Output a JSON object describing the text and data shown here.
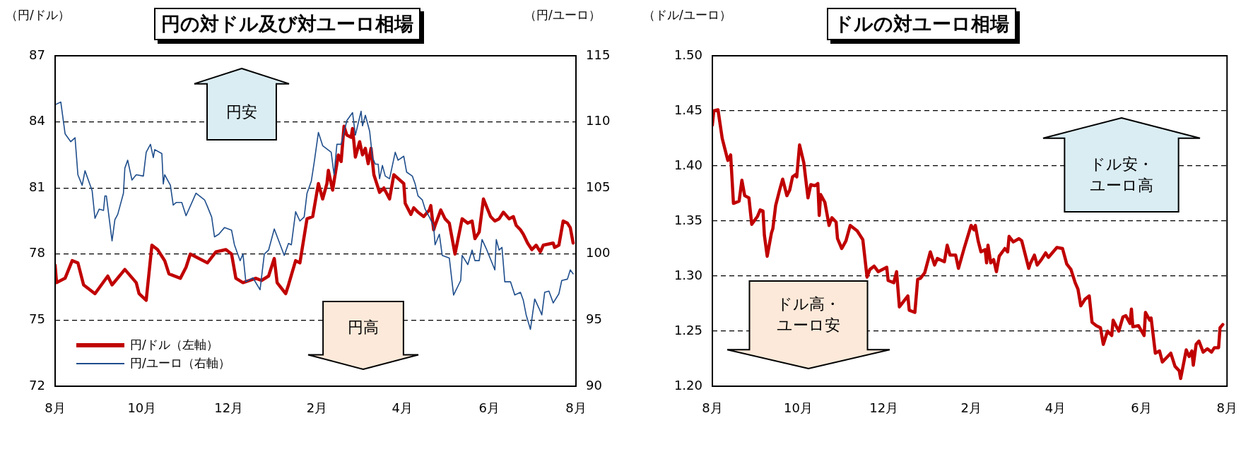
{
  "chart_data": [
    {
      "type": "line",
      "title": "円の対ドル及び対ユーロ相場",
      "ylabel": "（円/ドル）",
      "y2label": "（円/ユーロ）",
      "xlim": [
        "2011-08-01",
        "2012-08-01"
      ],
      "xticks": [
        {
          "value": "2011-08-01",
          "label": "8月"
        },
        {
          "value": "2011-10-01",
          "label": "10月"
        },
        {
          "value": "2011-12-01",
          "label": "12月"
        },
        {
          "value": "2012-02-01",
          "label": "2月"
        },
        {
          "value": "2012-04-01",
          "label": "4月"
        },
        {
          "value": "2012-06-01",
          "label": "6月"
        },
        {
          "value": "2012-08-01",
          "label": "8月"
        }
      ],
      "ylim": [
        72,
        87
      ],
      "yticks": [
        72,
        75,
        78,
        81,
        84,
        87
      ],
      "y2lim": [
        90,
        115
      ],
      "y2ticks": [
        90,
        95,
        100,
        105,
        110,
        115
      ],
      "grid": "y",
      "legend": "bottom left",
      "annotations": [
        "円安",
        "円高"
      ],
      "series": [
        {
          "name": "円/ドル（左軸）",
          "color": "#c00000",
          "x": [
            "2011-08-01",
            "2011-08-02",
            "2011-08-08",
            "2011-08-13",
            "2011-08-17",
            "2011-08-21",
            "2011-08-29",
            "2011-09-07",
            "2011-09-10",
            "2011-09-19",
            "2011-09-27",
            "2011-09-29",
            "2011-10-04",
            "2011-10-08",
            "2011-10-12",
            "2011-10-17",
            "2011-10-20",
            "2011-10-28",
            "2011-11-01",
            "2011-11-04",
            "2011-11-16",
            "2011-11-22",
            "2011-11-29",
            "2011-12-03",
            "2011-12-06",
            "2011-12-11",
            "2011-12-20",
            "2011-12-24",
            "2011-12-29",
            "2012-01-02",
            "2012-01-04",
            "2012-01-10",
            "2012-01-12",
            "2012-01-17",
            "2012-01-20",
            "2012-01-22",
            "2012-01-25",
            "2012-01-29",
            "2012-02-02",
            "2012-02-05",
            "2012-02-08",
            "2012-02-09",
            "2012-02-12",
            "2012-02-16",
            "2012-02-18",
            "2012-02-20",
            "2012-02-22",
            "2012-02-25",
            "2012-02-26",
            "2012-02-28",
            "2012-03-02",
            "2012-03-04",
            "2012-03-06",
            "2012-03-08",
            "2012-03-10",
            "2012-03-12",
            "2012-03-16",
            "2012-03-19",
            "2012-03-23",
            "2012-03-26",
            "2012-04-02",
            "2012-04-03",
            "2012-04-07",
            "2012-04-09",
            "2012-04-12",
            "2012-04-16",
            "2012-04-20",
            "2012-04-21",
            "2012-04-23",
            "2012-04-24",
            "2012-04-28",
            "2012-05-01",
            "2012-05-04",
            "2012-05-08",
            "2012-05-13",
            "2012-05-17",
            "2012-05-20",
            "2012-05-22",
            "2012-05-25",
            "2012-05-28",
            "2012-06-02",
            "2012-06-05",
            "2012-06-08",
            "2012-06-11",
            "2012-06-15",
            "2012-06-18",
            "2012-06-20",
            "2012-06-23",
            "2012-06-25",
            "2012-06-28",
            "2012-07-01",
            "2012-07-04",
            "2012-07-07",
            "2012-07-09",
            "2012-07-16",
            "2012-07-17",
            "2012-07-20",
            "2012-07-23",
            "2012-07-26",
            "2012-07-28",
            "2012-07-30"
          ],
          "values": [
            77.5,
            76.7,
            76.9,
            77.7,
            77.6,
            76.6,
            76.2,
            77.0,
            76.6,
            77.3,
            76.7,
            76.2,
            75.9,
            78.4,
            78.2,
            77.7,
            77.1,
            76.9,
            77.4,
            78.0,
            77.6,
            78.1,
            78.2,
            78.0,
            76.9,
            76.7,
            76.9,
            76.8,
            77.0,
            77.8,
            76.7,
            76.2,
            76.6,
            77.7,
            77.6,
            78.4,
            79.6,
            79.7,
            81.2,
            80.5,
            81.2,
            81.8,
            80.9,
            82.5,
            82.2,
            83.8,
            83.4,
            83.3,
            83.7,
            82.4,
            83.1,
            82.5,
            82.8,
            82.1,
            82.8,
            81.6,
            80.8,
            81.0,
            80.5,
            81.6,
            81.2,
            80.3,
            79.8,
            80.1,
            79.9,
            79.7,
            80.0,
            80.2,
            79.1,
            79.3,
            80.0,
            79.6,
            79.4,
            78.0,
            79.6,
            79.4,
            79.5,
            78.7,
            79.0,
            80.5,
            79.7,
            79.5,
            79.6,
            79.9,
            79.6,
            79.7,
            79.3,
            79.1,
            78.9,
            78.5,
            78.2,
            78.4,
            78.1,
            78.4,
            78.5,
            78.3,
            78.4,
            79.5,
            79.4,
            79.2,
            78.5
          ]
        },
        {
          "name": "円/ユーロ（右軸）",
          "color": "#1f4e8c",
          "axis": "y2",
          "x": [
            "2011-08-01",
            "2011-08-05",
            "2011-08-08",
            "2011-08-12",
            "2011-08-15",
            "2011-08-17",
            "2011-08-20",
            "2011-08-22",
            "2011-08-27",
            "2011-08-29",
            "2011-09-01",
            "2011-09-04",
            "2011-09-05",
            "2011-09-06",
            "2011-09-10",
            "2011-09-12",
            "2011-09-14",
            "2011-09-18",
            "2011-09-19",
            "2011-09-21",
            "2011-09-24",
            "2011-09-27",
            "2011-10-02",
            "2011-10-04",
            "2011-10-07",
            "2011-10-09",
            "2011-10-10",
            "2011-10-15",
            "2011-10-16",
            "2011-10-17",
            "2011-10-21",
            "2011-10-23",
            "2011-10-25",
            "2011-10-29",
            "2011-11-01",
            "2011-11-08",
            "2011-11-14",
            "2011-11-16",
            "2011-11-19",
            "2011-11-21",
            "2011-11-24",
            "2011-11-28",
            "2011-12-03",
            "2011-12-05",
            "2011-12-09",
            "2011-12-11",
            "2011-12-13",
            "2011-12-18",
            "2011-12-23",
            "2011-12-26",
            "2011-12-29",
            "2012-01-02",
            "2012-01-09",
            "2012-01-12",
            "2012-01-14",
            "2012-01-17",
            "2012-01-20",
            "2012-01-23",
            "2012-01-25",
            "2012-01-28",
            "2012-01-30",
            "2012-02-02",
            "2012-02-05",
            "2012-02-11",
            "2012-02-13",
            "2012-02-15",
            "2012-02-18",
            "2012-02-22",
            "2012-02-26",
            "2012-02-28",
            "2012-03-03",
            "2012-03-04",
            "2012-03-06",
            "2012-03-09",
            "2012-03-11",
            "2012-03-13",
            "2012-03-15",
            "2012-03-16",
            "2012-03-18",
            "2012-03-20",
            "2012-03-23",
            "2012-03-27",
            "2012-03-29",
            "2012-04-02",
            "2012-04-04",
            "2012-04-08",
            "2012-04-10",
            "2012-04-12",
            "2012-04-15",
            "2012-04-17",
            "2012-04-20",
            "2012-04-23",
            "2012-04-24",
            "2012-04-27",
            "2012-04-29",
            "2012-05-04",
            "2012-05-07",
            "2012-05-12",
            "2012-05-13",
            "2012-05-17",
            "2012-05-20",
            "2012-05-22",
            "2012-05-25",
            "2012-05-27",
            "2012-05-30",
            "2012-06-05",
            "2012-06-06",
            "2012-06-08",
            "2012-06-10",
            "2012-06-12",
            "2012-06-16",
            "2012-06-19",
            "2012-06-23",
            "2012-06-25",
            "2012-06-27",
            "2012-06-30",
            "2012-07-03",
            "2012-07-06",
            "2012-07-08",
            "2012-07-10",
            "2012-07-13",
            "2012-07-16",
            "2012-07-20",
            "2012-07-22",
            "2012-07-26",
            "2012-07-28",
            "2012-07-30"
          ],
          "values": [
            111.3,
            111.5,
            109.1,
            108.5,
            108.8,
            106.0,
            105.2,
            106.3,
            104.8,
            102.7,
            103.4,
            103.3,
            104.4,
            104.4,
            101.0,
            102.6,
            103.0,
            104.6,
            106.5,
            107.1,
            105.6,
            106.0,
            105.9,
            107.7,
            108.3,
            107.3,
            107.9,
            107.6,
            105.3,
            106.0,
            105.2,
            103.7,
            103.9,
            103.9,
            102.9,
            104.6,
            104.1,
            103.6,
            102.8,
            101.3,
            101.5,
            102.0,
            101.8,
            100.7,
            99.5,
            100.0,
            97.9,
            98.2,
            97.3,
            100.0,
            100.3,
            101.9,
            99.9,
            100.8,
            100.7,
            103.2,
            102.5,
            102.8,
            104.6,
            105.5,
            106.9,
            109.2,
            108.2,
            107.7,
            106.0,
            108.3,
            108.3,
            110.1,
            110.7,
            109.0,
            110.8,
            109.7,
            110.5,
            109.3,
            107.3,
            106.8,
            106.8,
            105.7,
            106.7,
            105.9,
            105.7,
            107.7,
            107.1,
            107.4,
            106.2,
            105.9,
            105.3,
            104.4,
            104.1,
            103.4,
            102.8,
            102.1,
            100.7,
            101.5,
            99.9,
            99.7,
            96.9,
            98.0,
            99.9,
            99.2,
            100.3,
            99.5,
            99.5,
            101.1,
            100.4,
            98.8,
            101.1,
            100.3,
            100.5,
            97.9,
            97.9,
            96.9,
            97.1,
            96.5,
            95.4,
            94.3,
            96.6,
            95.9,
            95.4,
            97.1,
            97.2,
            96.3,
            97.0,
            98.0,
            98.1,
            98.8,
            98.5
          ]
        }
      ]
    },
    {
      "type": "line",
      "title": "ドルの対ユーロ相場",
      "ylabel": "（ドル/ユーロ）",
      "xlim": [
        "2011-08-01",
        "2012-08-01"
      ],
      "xticks": [
        {
          "value": "2011-08-01",
          "label": "8月"
        },
        {
          "value": "2011-10-01",
          "label": "10月"
        },
        {
          "value": "2011-12-01",
          "label": "12月"
        },
        {
          "value": "2012-02-01",
          "label": "2月"
        },
        {
          "value": "2012-04-01",
          "label": "4月"
        },
        {
          "value": "2012-06-01",
          "label": "6月"
        },
        {
          "value": "2012-08-01",
          "label": "8月"
        }
      ],
      "ylim": [
        1.2,
        1.5
      ],
      "yticks": [
        {
          "value": 1.2,
          "label": "1.20"
        },
        1.25,
        {
          "value": 1.3,
          "label": "1.30"
        },
        1.35,
        {
          "value": 1.4,
          "label": "1.40"
        },
        1.45,
        {
          "value": 1.5,
          "label": "1.50"
        }
      ],
      "grid": "y",
      "annotations": [
        "ドル安・ユーロ高",
        "ドル高・ユーロ安"
      ],
      "series": [
        {
          "color": "#c00000",
          "x": [
            "2011-08-01",
            "2011-08-02",
            "2011-08-05",
            "2011-08-08",
            "2011-08-10",
            "2011-08-12",
            "2011-08-14",
            "2011-08-16",
            "2011-08-20",
            "2011-08-22",
            "2011-08-24",
            "2011-08-27",
            "2011-08-29",
            "2011-09-02",
            "2011-09-04",
            "2011-09-06",
            "2011-09-07",
            "2011-09-09",
            "2011-09-12",
            "2011-09-13",
            "2011-09-15",
            "2011-09-18",
            "2011-09-20",
            "2011-09-23",
            "2011-09-25",
            "2011-09-27",
            "2011-09-29",
            "2011-09-30",
            "2011-10-02",
            "2011-10-05",
            "2011-10-08",
            "2011-10-10",
            "2011-10-13",
            "2011-10-15",
            "2011-10-16",
            "2011-10-17",
            "2011-10-20",
            "2011-10-23",
            "2011-10-25",
            "2011-10-28",
            "2011-10-29",
            "2011-11-01",
            "2011-11-04",
            "2011-11-07",
            "2011-11-12",
            "2011-11-16",
            "2011-11-19",
            "2011-11-21",
            "2011-11-24",
            "2011-11-27",
            "2011-12-03",
            "2011-12-04",
            "2011-12-08",
            "2011-12-10",
            "2011-12-12",
            "2011-12-15",
            "2011-12-18",
            "2011-12-19",
            "2011-12-23",
            "2011-12-25",
            "2011-12-27",
            "2011-12-30",
            "2012-01-03",
            "2012-01-06",
            "2012-01-08",
            "2012-01-13",
            "2012-01-15",
            "2012-01-17",
            "2012-01-21",
            "2012-01-23",
            "2012-01-27",
            "2012-02-01",
            "2012-02-03",
            "2012-02-04",
            "2012-02-06",
            "2012-02-08",
            "2012-02-11",
            "2012-02-12",
            "2012-02-13",
            "2012-02-15",
            "2012-02-17",
            "2012-02-19",
            "2012-02-21",
            "2012-02-25",
            "2012-02-27",
            "2012-02-28",
            "2012-03-02",
            "2012-03-06",
            "2012-03-08",
            "2012-03-13",
            "2012-03-14",
            "2012-03-17",
            "2012-03-19",
            "2012-03-22",
            "2012-03-25",
            "2012-03-27",
            "2012-04-02",
            "2012-04-06",
            "2012-04-09",
            "2012-04-12",
            "2012-04-15",
            "2012-04-17",
            "2012-04-19",
            "2012-04-22",
            "2012-04-25",
            "2012-04-27",
            "2012-04-30",
            "2012-05-03",
            "2012-05-05",
            "2012-05-08",
            "2012-05-11",
            "2012-05-12",
            "2012-05-16",
            "2012-05-19",
            "2012-05-21",
            "2012-05-24",
            "2012-05-25",
            "2012-05-26",
            "2012-05-30",
            "2012-06-03",
            "2012-06-04",
            "2012-06-07",
            "2012-06-08",
            "2012-06-11",
            "2012-06-14",
            "2012-06-16",
            "2012-06-19",
            "2012-06-22",
            "2012-06-25",
            "2012-06-28",
            "2012-06-29",
            "2012-07-03",
            "2012-07-05",
            "2012-07-07",
            "2012-07-08",
            "2012-07-10",
            "2012-07-12",
            "2012-07-15",
            "2012-07-18",
            "2012-07-21",
            "2012-07-23",
            "2012-07-26",
            "2012-07-27",
            "2012-07-29"
          ],
          "values": [
            1.437,
            1.45,
            1.451,
            1.425,
            1.415,
            1.405,
            1.41,
            1.366,
            1.368,
            1.387,
            1.373,
            1.371,
            1.347,
            1.354,
            1.36,
            1.359,
            1.337,
            1.318,
            1.339,
            1.343,
            1.364,
            1.379,
            1.388,
            1.373,
            1.378,
            1.39,
            1.392,
            1.39,
            1.419,
            1.403,
            1.371,
            1.383,
            1.382,
            1.384,
            1.355,
            1.374,
            1.367,
            1.346,
            1.353,
            1.349,
            1.334,
            1.325,
            1.332,
            1.346,
            1.341,
            1.333,
            1.299,
            1.306,
            1.309,
            1.304,
            1.308,
            1.296,
            1.294,
            1.304,
            1.272,
            1.277,
            1.282,
            1.269,
            1.267,
            1.297,
            1.298,
            1.303,
            1.322,
            1.31,
            1.316,
            1.313,
            1.328,
            1.319,
            1.319,
            1.307,
            1.325,
            1.346,
            1.342,
            1.346,
            1.332,
            1.322,
            1.324,
            1.312,
            1.328,
            1.312,
            1.315,
            1.304,
            1.318,
            1.325,
            1.322,
            1.336,
            1.331,
            1.334,
            1.332,
            1.307,
            1.311,
            1.319,
            1.31,
            1.315,
            1.321,
            1.317,
            1.326,
            1.325,
            1.311,
            1.306,
            1.294,
            1.288,
            1.273,
            1.279,
            1.282,
            1.258,
            1.255,
            1.253,
            1.238,
            1.25,
            1.246,
            1.26,
            1.25,
            1.263,
            1.264,
            1.257,
            1.27,
            1.254,
            1.255,
            1.246,
            1.267,
            1.26,
            1.262,
            1.23,
            1.232,
            1.222,
            1.226,
            1.23,
            1.218,
            1.214,
            1.207,
            1.233,
            1.227,
            1.232,
            1.219,
            1.238,
            1.241,
            1.231,
            1.234,
            1.231,
            1.235,
            1.235,
            1.253,
            1.256
          ]
        }
      ]
    }
  ]
}
